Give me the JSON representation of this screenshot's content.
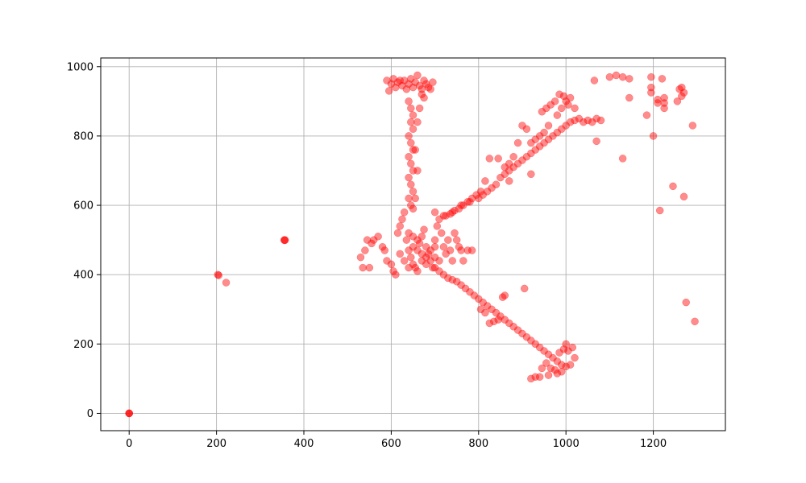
{
  "chart_data": {
    "type": "scatter",
    "title": "",
    "xlabel": "",
    "ylabel": "",
    "xlim": [
      -65,
      1365
    ],
    "ylim": [
      -50,
      1025
    ],
    "x_ticks": [
      0,
      200,
      400,
      600,
      800,
      1000,
      1200
    ],
    "y_ticks": [
      0,
      200,
      400,
      600,
      800,
      1000
    ],
    "grid": true,
    "marker_color": "#ff0000",
    "marker_alpha": 0.45,
    "legend": null,
    "points": [
      [
        0,
        0
      ],
      [
        0,
        0
      ],
      [
        0,
        0
      ],
      [
        203,
        400
      ],
      [
        205,
        398
      ],
      [
        222,
        377
      ],
      [
        355,
        500
      ],
      [
        357,
        500
      ],
      [
        356,
        499
      ],
      [
        530,
        450
      ],
      [
        535,
        420
      ],
      [
        540,
        470
      ],
      [
        545,
        500
      ],
      [
        550,
        420
      ],
      [
        555,
        490
      ],
      [
        560,
        500
      ],
      [
        570,
        510
      ],
      [
        580,
        480
      ],
      [
        585,
        470
      ],
      [
        590,
        440
      ],
      [
        600,
        430
      ],
      [
        605,
        410
      ],
      [
        610,
        400
      ],
      [
        615,
        520
      ],
      [
        620,
        540
      ],
      [
        625,
        560
      ],
      [
        630,
        580
      ],
      [
        635,
        500
      ],
      [
        640,
        470
      ],
      [
        645,
        450
      ],
      [
        650,
        430
      ],
      [
        655,
        420
      ],
      [
        660,
        410
      ],
      [
        665,
        490
      ],
      [
        670,
        510
      ],
      [
        675,
        530
      ],
      [
        680,
        480
      ],
      [
        685,
        460
      ],
      [
        690,
        440
      ],
      [
        695,
        420
      ],
      [
        700,
        500
      ],
      [
        705,
        540
      ],
      [
        710,
        560
      ],
      [
        715,
        520
      ],
      [
        720,
        480
      ],
      [
        725,
        460
      ],
      [
        730,
        500
      ],
      [
        735,
        470
      ],
      [
        740,
        440
      ],
      [
        745,
        520
      ],
      [
        750,
        500
      ],
      [
        755,
        480
      ],
      [
        760,
        470
      ],
      [
        765,
        440
      ],
      [
        775,
        470
      ],
      [
        785,
        470
      ],
      [
        640,
        520
      ],
      [
        650,
        510
      ],
      [
        660,
        500
      ],
      [
        670,
        460
      ],
      [
        680,
        450
      ],
      [
        690,
        470
      ],
      [
        700,
        480
      ],
      [
        710,
        440
      ],
      [
        620,
        460
      ],
      [
        630,
        440
      ],
      [
        640,
        420
      ],
      [
        650,
        480
      ],
      [
        660,
        470
      ],
      [
        670,
        440
      ],
      [
        680,
        430
      ],
      [
        700,
        450
      ],
      [
        590,
        960
      ],
      [
        595,
        930
      ],
      [
        600,
        950
      ],
      [
        605,
        965
      ],
      [
        610,
        940
      ],
      [
        615,
        955
      ],
      [
        620,
        960
      ],
      [
        625,
        945
      ],
      [
        630,
        960
      ],
      [
        635,
        935
      ],
      [
        640,
        950
      ],
      [
        645,
        965
      ],
      [
        650,
        940
      ],
      [
        655,
        955
      ],
      [
        660,
        975
      ],
      [
        665,
        945
      ],
      [
        670,
        935
      ],
      [
        675,
        960
      ],
      [
        680,
        950
      ],
      [
        685,
        940
      ],
      [
        690,
        935
      ],
      [
        695,
        955
      ],
      [
        640,
        900
      ],
      [
        645,
        880
      ],
      [
        650,
        860
      ],
      [
        645,
        840
      ],
      [
        650,
        820
      ],
      [
        640,
        800
      ],
      [
        645,
        780
      ],
      [
        650,
        760
      ],
      [
        640,
        740
      ],
      [
        645,
        720
      ],
      [
        650,
        700
      ],
      [
        640,
        680
      ],
      [
        645,
        660
      ],
      [
        650,
        640
      ],
      [
        640,
        620
      ],
      [
        645,
        600
      ],
      [
        650,
        590
      ],
      [
        655,
        620
      ],
      [
        660,
        700
      ],
      [
        655,
        760
      ],
      [
        660,
        840
      ],
      [
        665,
        880
      ],
      [
        670,
        920
      ],
      [
        675,
        910
      ],
      [
        700,
        580
      ],
      [
        720,
        570
      ],
      [
        740,
        580
      ],
      [
        760,
        600
      ],
      [
        780,
        610
      ],
      [
        800,
        620
      ],
      [
        810,
        630
      ],
      [
        820,
        640
      ],
      [
        830,
        650
      ],
      [
        840,
        660
      ],
      [
        850,
        680
      ],
      [
        860,
        690
      ],
      [
        870,
        700
      ],
      [
        880,
        710
      ],
      [
        890,
        720
      ],
      [
        900,
        730
      ],
      [
        910,
        740
      ],
      [
        920,
        750
      ],
      [
        930,
        760
      ],
      [
        940,
        770
      ],
      [
        950,
        780
      ],
      [
        960,
        790
      ],
      [
        970,
        800
      ],
      [
        980,
        810
      ],
      [
        990,
        820
      ],
      [
        1000,
        830
      ],
      [
        1010,
        840
      ],
      [
        1020,
        845
      ],
      [
        1030,
        850
      ],
      [
        1040,
        840
      ],
      [
        1050,
        845
      ],
      [
        1060,
        840
      ],
      [
        1070,
        850
      ],
      [
        1080,
        845
      ],
      [
        980,
        860
      ],
      [
        990,
        880
      ],
      [
        1000,
        900
      ],
      [
        1010,
        910
      ],
      [
        1020,
        880
      ],
      [
        985,
        920
      ],
      [
        995,
        915
      ],
      [
        1005,
        890
      ],
      [
        975,
        900
      ],
      [
        965,
        890
      ],
      [
        955,
        880
      ],
      [
        945,
        870
      ],
      [
        960,
        830
      ],
      [
        950,
        810
      ],
      [
        940,
        800
      ],
      [
        930,
        790
      ],
      [
        920,
        780
      ],
      [
        910,
        820
      ],
      [
        900,
        830
      ],
      [
        890,
        780
      ],
      [
        880,
        740
      ],
      [
        870,
        720
      ],
      [
        860,
        710
      ],
      [
        845,
        735
      ],
      [
        825,
        735
      ],
      [
        815,
        670
      ],
      [
        805,
        640
      ],
      [
        795,
        630
      ],
      [
        785,
        620
      ],
      [
        775,
        610
      ],
      [
        765,
        600
      ],
      [
        755,
        590
      ],
      [
        745,
        585
      ],
      [
        735,
        575
      ],
      [
        725,
        570
      ],
      [
        920,
        690
      ],
      [
        870,
        670
      ],
      [
        700,
        420
      ],
      [
        710,
        410
      ],
      [
        720,
        400
      ],
      [
        730,
        390
      ],
      [
        740,
        385
      ],
      [
        750,
        380
      ],
      [
        760,
        370
      ],
      [
        770,
        360
      ],
      [
        780,
        350
      ],
      [
        790,
        340
      ],
      [
        800,
        330
      ],
      [
        810,
        320
      ],
      [
        820,
        310
      ],
      [
        830,
        300
      ],
      [
        840,
        290
      ],
      [
        850,
        280
      ],
      [
        860,
        270
      ],
      [
        870,
        260
      ],
      [
        880,
        250
      ],
      [
        890,
        240
      ],
      [
        900,
        230
      ],
      [
        910,
        220
      ],
      [
        920,
        210
      ],
      [
        930,
        200
      ],
      [
        940,
        190
      ],
      [
        950,
        180
      ],
      [
        960,
        170
      ],
      [
        970,
        160
      ],
      [
        980,
        150
      ],
      [
        990,
        140
      ],
      [
        1000,
        135
      ],
      [
        1010,
        140
      ],
      [
        1000,
        200
      ],
      [
        1005,
        180
      ],
      [
        990,
        120
      ],
      [
        980,
        115
      ],
      [
        960,
        110
      ],
      [
        940,
        105
      ],
      [
        920,
        100
      ],
      [
        930,
        105
      ],
      [
        945,
        130
      ],
      [
        955,
        145
      ],
      [
        965,
        130
      ],
      [
        975,
        125
      ],
      [
        985,
        175
      ],
      [
        995,
        185
      ],
      [
        1020,
        160
      ],
      [
        1015,
        190
      ],
      [
        905,
        360
      ],
      [
        860,
        340
      ],
      [
        855,
        335
      ],
      [
        845,
        270
      ],
      [
        835,
        265
      ],
      [
        825,
        260
      ],
      [
        815,
        290
      ],
      [
        805,
        300
      ],
      [
        1065,
        960
      ],
      [
        1100,
        970
      ],
      [
        1115,
        975
      ],
      [
        1130,
        970
      ],
      [
        1145,
        965
      ],
      [
        1195,
        970
      ],
      [
        1220,
        965
      ],
      [
        1195,
        940
      ],
      [
        1195,
        925
      ],
      [
        1210,
        905
      ],
      [
        1225,
        910
      ],
      [
        1210,
        895
      ],
      [
        1225,
        880
      ],
      [
        1225,
        895
      ],
      [
        1255,
        900
      ],
      [
        1260,
        935
      ],
      [
        1265,
        940
      ],
      [
        1270,
        925
      ],
      [
        1265,
        915
      ],
      [
        1145,
        910
      ],
      [
        1185,
        860
      ],
      [
        1200,
        800
      ],
      [
        1290,
        830
      ],
      [
        1130,
        735
      ],
      [
        1070,
        785
      ],
      [
        1245,
        655
      ],
      [
        1270,
        625
      ],
      [
        1215,
        585
      ],
      [
        1275,
        320
      ],
      [
        1295,
        265
      ]
    ]
  }
}
